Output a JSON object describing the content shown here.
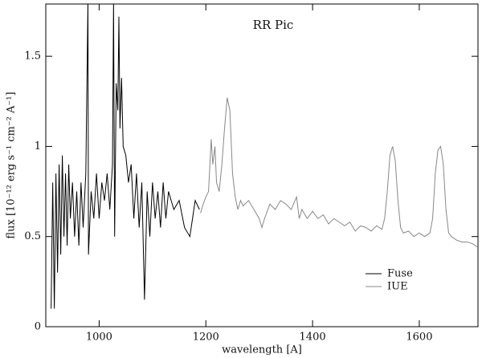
{
  "chart_data": {
    "type": "line",
    "title": "RR Pic",
    "x_label": "wavelength [A]",
    "y_label": "flux [10⁻¹² erg s⁻¹ cm⁻² A⁻¹]",
    "xlim": [
      900,
      1710
    ],
    "ylim": [
      0,
      1.79
    ],
    "xticks": [
      1000,
      1200,
      1400,
      1600
    ],
    "yticks": [
      0,
      0.5,
      1,
      1.5
    ],
    "legend": "lower right",
    "series": [
      {
        "name": "Fuse",
        "color": "#000000",
        "x": [
          910,
          913,
          916,
          919,
          922,
          925,
          928,
          931,
          934,
          937,
          940,
          943,
          946,
          950,
          954,
          958,
          962,
          966,
          970,
          975,
          979,
          980,
          985,
          990,
          995,
          1000,
          1005,
          1010,
          1015,
          1020,
          1025,
          1027,
          1029,
          1032,
          1035,
          1037,
          1039,
          1042,
          1045,
          1050,
          1055,
          1060,
          1065,
          1070,
          1075,
          1080,
          1085,
          1090,
          1095,
          1100,
          1105,
          1110,
          1115,
          1120,
          1125,
          1130,
          1140,
          1150,
          1160,
          1170,
          1175,
          1180,
          1188
        ],
        "values": [
          0.1,
          0.8,
          0.1,
          0.85,
          0.3,
          0.9,
          0.4,
          0.95,
          0.5,
          0.85,
          0.45,
          0.9,
          0.6,
          0.8,
          0.5,
          0.75,
          0.45,
          0.8,
          0.55,
          0.85,
          1.8,
          0.4,
          0.75,
          0.6,
          0.85,
          0.6,
          0.8,
          0.7,
          0.85,
          0.65,
          0.9,
          1.8,
          0.5,
          1.35,
          1.2,
          1.72,
          1.1,
          1.38,
          1.0,
          0.95,
          0.8,
          0.9,
          0.6,
          0.85,
          0.55,
          0.8,
          0.15,
          0.75,
          0.5,
          0.8,
          0.6,
          0.75,
          0.55,
          0.8,
          0.6,
          0.75,
          0.65,
          0.7,
          0.55,
          0.5,
          0.6,
          0.7,
          0.65
        ]
      },
      {
        "name": "IUE",
        "color": "#888888",
        "x": [
          1190,
          1195,
          1200,
          1205,
          1210,
          1213,
          1217,
          1220,
          1225,
          1230,
          1235,
          1240,
          1245,
          1250,
          1255,
          1260,
          1265,
          1270,
          1280,
          1290,
          1300,
          1305,
          1310,
          1320,
          1330,
          1340,
          1350,
          1360,
          1370,
          1375,
          1380,
          1390,
          1400,
          1410,
          1420,
          1430,
          1440,
          1450,
          1460,
          1470,
          1480,
          1490,
          1500,
          1510,
          1520,
          1530,
          1535,
          1540,
          1545,
          1550,
          1555,
          1560,
          1565,
          1570,
          1580,
          1590,
          1600,
          1610,
          1620,
          1625,
          1630,
          1635,
          1640,
          1645,
          1650,
          1655,
          1660,
          1670,
          1680,
          1690,
          1700,
          1710
        ],
        "values": [
          0.63,
          0.68,
          0.72,
          0.75,
          1.04,
          0.9,
          1.0,
          0.8,
          0.75,
          0.9,
          1.1,
          1.27,
          1.2,
          0.85,
          0.72,
          0.65,
          0.7,
          0.67,
          0.7,
          0.65,
          0.6,
          0.55,
          0.6,
          0.68,
          0.65,
          0.7,
          0.68,
          0.65,
          0.72,
          0.6,
          0.65,
          0.6,
          0.64,
          0.6,
          0.62,
          0.57,
          0.6,
          0.58,
          0.56,
          0.58,
          0.53,
          0.56,
          0.55,
          0.53,
          0.56,
          0.54,
          0.6,
          0.75,
          0.95,
          1.0,
          0.92,
          0.7,
          0.55,
          0.52,
          0.53,
          0.5,
          0.52,
          0.5,
          0.52,
          0.6,
          0.85,
          0.98,
          1.0,
          0.9,
          0.65,
          0.52,
          0.5,
          0.48,
          0.47,
          0.47,
          0.46,
          0.44
        ]
      }
    ]
  }
}
